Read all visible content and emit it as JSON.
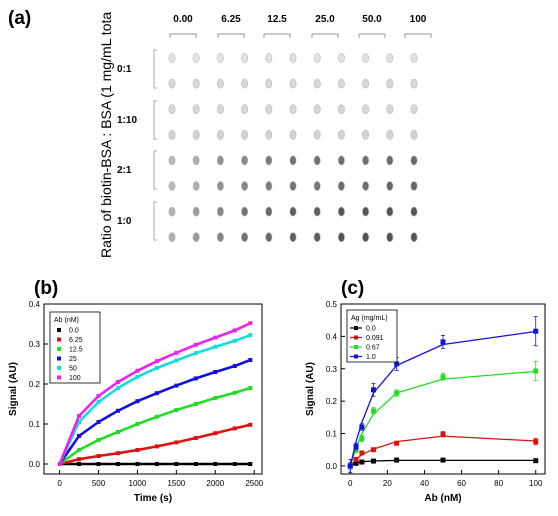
{
  "panel_a": {
    "label": "(a)",
    "ylabel": "Ratio of biotin-BSA : BSA (1 mg/mL tota",
    "concentrations": [
      "0.00",
      "6.25",
      "12.5",
      "25.0",
      "50.0",
      "100"
    ],
    "ratios": [
      "0:1",
      "1:10",
      "2:1",
      "1:0"
    ],
    "intensity": [
      [
        0.15,
        0.15,
        0.15,
        0.15,
        0.15,
        0.15,
        0.15,
        0.15,
        0.15,
        0.15,
        0.15
      ],
      [
        0.2,
        0.2,
        0.2,
        0.2,
        0.2,
        0.2,
        0.2,
        0.2,
        0.2,
        0.2,
        0.2
      ],
      [
        0.2,
        0.2,
        0.2,
        0.2,
        0.2,
        0.2,
        0.2,
        0.2,
        0.2,
        0.2,
        0.2
      ],
      [
        0.22,
        0.22,
        0.22,
        0.22,
        0.22,
        0.22,
        0.22,
        0.22,
        0.22,
        0.22,
        0.22
      ],
      [
        0.35,
        0.4,
        0.55,
        0.6,
        0.65,
        0.7,
        0.7,
        0.72,
        0.72,
        0.75,
        0.75
      ],
      [
        0.35,
        0.4,
        0.55,
        0.6,
        0.65,
        0.7,
        0.7,
        0.72,
        0.72,
        0.75,
        0.75
      ],
      [
        0.4,
        0.5,
        0.6,
        0.7,
        0.75,
        0.8,
        0.8,
        0.85,
        0.85,
        0.85,
        0.85
      ],
      [
        0.4,
        0.5,
        0.6,
        0.7,
        0.75,
        0.8,
        0.8,
        0.85,
        0.85,
        0.85,
        0.85
      ]
    ]
  },
  "chart_data": [
    {
      "type": "line",
      "label": "(b)",
      "xlabel": "Time (s)",
      "ylabel": "Signal (AU)",
      "xlim": [
        -200,
        2600
      ],
      "ylim": [
        -0.025,
        0.4
      ],
      "xticks": [
        0,
        500,
        1000,
        1500,
        2000,
        2500
      ],
      "yticks": [
        0.0,
        0.1,
        0.2,
        0.3,
        0.4
      ],
      "legend": {
        "title": "Ab (nM)",
        "position": "top-left"
      },
      "x": [
        0,
        250,
        500,
        750,
        1000,
        1250,
        1500,
        1750,
        2000,
        2250,
        2450
      ],
      "series": [
        {
          "name": "0.0",
          "color": "#000000",
          "values": [
            0,
            0,
            0,
            0,
            0,
            0,
            0,
            0,
            0,
            0,
            0
          ]
        },
        {
          "name": "6.25",
          "color": "#dd1111",
          "values": [
            0,
            0.012,
            0.02,
            0.027,
            0.035,
            0.044,
            0.054,
            0.065,
            0.077,
            0.089,
            0.098
          ]
        },
        {
          "name": "12.5",
          "color": "#22dd22",
          "values": [
            0,
            0.035,
            0.06,
            0.08,
            0.1,
            0.118,
            0.135,
            0.15,
            0.165,
            0.178,
            0.19
          ]
        },
        {
          "name": "25",
          "color": "#1111dd",
          "values": [
            0,
            0.07,
            0.105,
            0.133,
            0.157,
            0.177,
            0.196,
            0.214,
            0.23,
            0.245,
            0.26
          ]
        },
        {
          "name": "50",
          "color": "#11dddd",
          "values": [
            0,
            0.105,
            0.155,
            0.19,
            0.218,
            0.24,
            0.259,
            0.277,
            0.293,
            0.308,
            0.322
          ]
        },
        {
          "name": "100",
          "color": "#ee22ee",
          "values": [
            0,
            0.12,
            0.17,
            0.205,
            0.233,
            0.257,
            0.278,
            0.298,
            0.316,
            0.334,
            0.352
          ]
        }
      ]
    },
    {
      "type": "scatter",
      "label": "(c)",
      "xlabel": "Ab (nM)",
      "ylabel": "Signal (AU)",
      "xlim": [
        -5,
        105
      ],
      "ylim": [
        -0.025,
        0.5
      ],
      "xticks": [
        0,
        20,
        40,
        60,
        80,
        100
      ],
      "yticks": [
        0.0,
        0.1,
        0.2,
        0.3,
        0.4,
        0.5
      ],
      "legend": {
        "title": "Ag (mg/mL)",
        "position": "top-left"
      },
      "x": [
        0,
        3.125,
        6.25,
        12.5,
        25,
        50,
        100
      ],
      "series": [
        {
          "name": "0.0",
          "color": "#000000",
          "values": [
            0.0,
            0.008,
            0.012,
            0.015,
            0.018,
            0.018,
            0.016
          ],
          "errors": [
            0.005,
            0.003,
            0.003,
            0.004,
            0.004,
            0.004,
            0.004
          ],
          "fit": [
            0,
            0.01,
            0.013,
            0.015,
            0.017,
            0.017,
            0.017
          ]
        },
        {
          "name": "0.091",
          "color": "#dd1111",
          "values": [
            0.0,
            0.02,
            0.04,
            0.05,
            0.07,
            0.098,
            0.075
          ],
          "errors": [
            0.01,
            0.005,
            0.005,
            0.005,
            0.005,
            0.008,
            0.01
          ],
          "fit": [
            0,
            0.02,
            0.035,
            0.052,
            0.075,
            0.092,
            0.077
          ]
        },
        {
          "name": "0.67",
          "color": "#22dd22",
          "values": [
            0.0,
            0.05,
            0.085,
            0.17,
            0.225,
            0.275,
            0.293
          ],
          "errors": [
            0.01,
            0.01,
            0.01,
            0.01,
            0.01,
            0.01,
            0.03
          ],
          "fit": [
            0,
            0.055,
            0.1,
            0.16,
            0.225,
            0.268,
            0.292
          ]
        },
        {
          "name": "1.0",
          "color": "#1111dd",
          "values": [
            0.0,
            0.06,
            0.12,
            0.235,
            0.315,
            0.383,
            0.416
          ],
          "errors": [
            0.02,
            0.01,
            0.01,
            0.02,
            0.02,
            0.02,
            0.045
          ],
          "fit": [
            0,
            0.075,
            0.135,
            0.225,
            0.31,
            0.375,
            0.415
          ]
        }
      ]
    }
  ]
}
